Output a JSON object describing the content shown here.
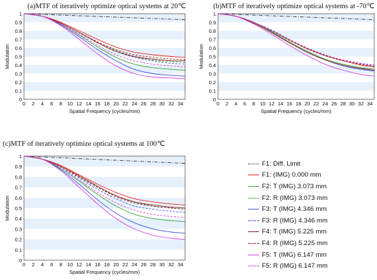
{
  "legend_entries": [
    {
      "label": "F1: Diff. Limit",
      "color": "#333333",
      "dash": "dashdot"
    },
    {
      "label": "F1: (IMG) 0.000 mm",
      "color": "#e8231f",
      "dash": "solid"
    },
    {
      "label": "F2: T (IMG) 3.073 mm",
      "color": "#36a336",
      "dash": "solid"
    },
    {
      "label": "F2: R (IMG) 3.073 mm",
      "color": "#36a336",
      "dash": "dashed"
    },
    {
      "label": "F3: T (IMG) 4.346 mm",
      "color": "#3b4fd8",
      "dash": "solid"
    },
    {
      "label": "F3: R (IMG) 4.346 mm",
      "color": "#3b4fd8",
      "dash": "dashed"
    },
    {
      "label": "F4: T (IMG) 5.225 mm",
      "color": "#8b1a1a",
      "dash": "solid"
    },
    {
      "label": "F4: R (IMG) 5.225 mm",
      "color": "#8b1a1a",
      "dash": "dashed"
    },
    {
      "label": "F5: T (IMG) 6.147 mm",
      "color": "#d63bd6",
      "dash": "solid"
    },
    {
      "label": "F5: R (IMG) 6.147 mm",
      "color": "#d63bd6",
      "dash": "dashed"
    }
  ],
  "chart_data": [
    {
      "type": "line",
      "title": "(a)MTF of iteratively optimize optical systems at 20℃",
      "xlabel": "Spatial Frequency (cycles/mm)",
      "ylabel": "Modulation",
      "xlim": [
        0,
        35
      ],
      "ylim": [
        0,
        1
      ],
      "xticks": [
        "0",
        "2",
        "4",
        "6",
        "8",
        "10",
        "12",
        "14",
        "16",
        "18",
        "20",
        "22",
        "24",
        "26",
        "28",
        "30",
        "32",
        "34"
      ],
      "yticks": [
        "0",
        "0.1",
        "0.2",
        "0.3",
        "0.4",
        "0.5",
        "0.6",
        "0.7",
        "0.8",
        "0.9",
        "1"
      ],
      "grid": "horizontal bands",
      "series": [
        {
          "name": "F1: Diff. Limit",
          "x": [
            0,
            35
          ],
          "y": [
            1.0,
            0.93
          ]
        },
        {
          "name": "F1: (IMG) 0.000 mm",
          "x": [
            0,
            4,
            8,
            12,
            16,
            20,
            24,
            28,
            32,
            35
          ],
          "y": [
            1.0,
            0.97,
            0.9,
            0.8,
            0.7,
            0.61,
            0.55,
            0.52,
            0.5,
            0.49
          ]
        },
        {
          "name": "F2: T (IMG) 3.073 mm",
          "x": [
            0,
            4,
            8,
            12,
            16,
            20,
            24,
            28,
            32,
            35
          ],
          "y": [
            1.0,
            0.97,
            0.88,
            0.75,
            0.61,
            0.49,
            0.41,
            0.37,
            0.35,
            0.34
          ]
        },
        {
          "name": "F2: R (IMG) 3.073 mm",
          "x": [
            0,
            4,
            8,
            12,
            16,
            20,
            24,
            28,
            32,
            35
          ],
          "y": [
            1.0,
            0.97,
            0.89,
            0.78,
            0.67,
            0.57,
            0.5,
            0.46,
            0.44,
            0.43
          ]
        },
        {
          "name": "F3: T (IMG) 4.346 mm",
          "x": [
            0,
            4,
            8,
            12,
            16,
            20,
            24,
            28,
            32,
            35
          ],
          "y": [
            1.0,
            0.97,
            0.87,
            0.73,
            0.58,
            0.45,
            0.35,
            0.3,
            0.28,
            0.27
          ]
        },
        {
          "name": "F3: R (IMG) 4.346 mm",
          "x": [
            0,
            4,
            8,
            12,
            16,
            20,
            24,
            28,
            32,
            35
          ],
          "y": [
            1.0,
            0.97,
            0.89,
            0.78,
            0.66,
            0.56,
            0.49,
            0.45,
            0.42,
            0.41
          ]
        },
        {
          "name": "F4: T (IMG) 5.225 mm",
          "x": [
            0,
            4,
            8,
            12,
            16,
            20,
            24,
            28,
            32,
            35
          ],
          "y": [
            1.0,
            0.97,
            0.89,
            0.78,
            0.66,
            0.56,
            0.5,
            0.47,
            0.45,
            0.45
          ]
        },
        {
          "name": "F4: R (IMG) 5.225 mm",
          "x": [
            0,
            4,
            8,
            12,
            16,
            20,
            24,
            28,
            32,
            35
          ],
          "y": [
            1.0,
            0.97,
            0.89,
            0.78,
            0.67,
            0.58,
            0.52,
            0.49,
            0.47,
            0.46
          ]
        },
        {
          "name": "F5: T (IMG) 6.147 mm",
          "x": [
            0,
            4,
            8,
            12,
            16,
            20,
            24,
            28,
            32,
            35
          ],
          "y": [
            1.0,
            0.97,
            0.86,
            0.7,
            0.53,
            0.39,
            0.3,
            0.26,
            0.25,
            0.24
          ]
        },
        {
          "name": "F5: R (IMG) 6.147 mm",
          "x": [
            0,
            4,
            8,
            12,
            16,
            20,
            24,
            28,
            32,
            35
          ],
          "y": [
            1.0,
            0.97,
            0.88,
            0.76,
            0.63,
            0.52,
            0.45,
            0.41,
            0.39,
            0.38
          ]
        }
      ]
    },
    {
      "type": "line",
      "title": "(b)MTF of iteratively optimize optical systems at -70℃",
      "xlabel": "Spatial Frequency (cycles/mm)",
      "ylabel": "Modulation",
      "xlim": [
        0,
        35
      ],
      "ylim": [
        0,
        1
      ],
      "xticks": [
        "0",
        "2",
        "4",
        "6",
        "8",
        "10",
        "12",
        "14",
        "16",
        "18",
        "20",
        "22",
        "24",
        "26",
        "28",
        "30",
        "32",
        "34"
      ],
      "yticks": [
        "0",
        "0.1",
        "0.2",
        "0.3",
        "0.4",
        "0.5",
        "0.6",
        "0.7",
        "0.8",
        "0.9",
        "1"
      ],
      "grid": "horizontal bands",
      "series": [
        {
          "name": "F1: Diff. Limit",
          "x": [
            0,
            35
          ],
          "y": [
            1.0,
            0.93
          ]
        },
        {
          "name": "F1: (IMG) 0.000 mm",
          "x": [
            0,
            4,
            8,
            12,
            16,
            20,
            24,
            28,
            32,
            35
          ],
          "y": [
            1.0,
            0.97,
            0.9,
            0.8,
            0.69,
            0.59,
            0.51,
            0.45,
            0.4,
            0.38
          ]
        },
        {
          "name": "F2: T (IMG) 3.073 mm",
          "x": [
            0,
            4,
            8,
            12,
            16,
            20,
            24,
            28,
            32,
            35
          ],
          "y": [
            1.0,
            0.97,
            0.9,
            0.79,
            0.67,
            0.56,
            0.47,
            0.41,
            0.37,
            0.35
          ]
        },
        {
          "name": "F2: R (IMG) 3.073 mm",
          "x": [
            0,
            4,
            8,
            12,
            16,
            20,
            24,
            28,
            32,
            35
          ],
          "y": [
            1.0,
            0.97,
            0.9,
            0.8,
            0.69,
            0.59,
            0.51,
            0.45,
            0.41,
            0.39
          ]
        },
        {
          "name": "F3: T (IMG) 4.346 mm",
          "x": [
            0,
            4,
            8,
            12,
            16,
            20,
            24,
            28,
            32,
            35
          ],
          "y": [
            1.0,
            0.97,
            0.89,
            0.78,
            0.66,
            0.55,
            0.46,
            0.39,
            0.35,
            0.33
          ]
        },
        {
          "name": "F3: R (IMG) 4.346 mm",
          "x": [
            0,
            4,
            8,
            12,
            16,
            20,
            24,
            28,
            32,
            35
          ],
          "y": [
            1.0,
            0.97,
            0.9,
            0.81,
            0.7,
            0.6,
            0.52,
            0.46,
            0.42,
            0.4
          ]
        },
        {
          "name": "F4: T (IMG) 5.225 mm",
          "x": [
            0,
            4,
            8,
            12,
            16,
            20,
            24,
            28,
            32,
            35
          ],
          "y": [
            1.0,
            0.97,
            0.89,
            0.78,
            0.66,
            0.55,
            0.46,
            0.4,
            0.36,
            0.34
          ]
        },
        {
          "name": "F4: R (IMG) 5.225 mm",
          "x": [
            0,
            4,
            8,
            12,
            16,
            20,
            24,
            28,
            32,
            35
          ],
          "y": [
            1.0,
            0.97,
            0.9,
            0.8,
            0.69,
            0.59,
            0.51,
            0.45,
            0.41,
            0.39
          ]
        },
        {
          "name": "F5: T (IMG) 6.147 mm",
          "x": [
            0,
            4,
            8,
            12,
            16,
            20,
            24,
            28,
            32,
            35
          ],
          "y": [
            1.0,
            0.97,
            0.88,
            0.76,
            0.63,
            0.51,
            0.41,
            0.34,
            0.29,
            0.27
          ]
        },
        {
          "name": "F5: R (IMG) 6.147 mm",
          "x": [
            0,
            4,
            8,
            12,
            16,
            20,
            24,
            28,
            32,
            35
          ],
          "y": [
            1.0,
            0.97,
            0.9,
            0.8,
            0.7,
            0.6,
            0.52,
            0.46,
            0.42,
            0.4
          ]
        }
      ]
    },
    {
      "type": "line",
      "title": "(c)MTF of iteratively optimize optical systems at 100℃",
      "xlabel": "Spatial Frequency (cycles/mm)",
      "ylabel": "Modulation",
      "xlim": [
        0,
        35
      ],
      "ylim": [
        0,
        1
      ],
      "xticks": [
        "0",
        "2",
        "4",
        "6",
        "8",
        "10",
        "12",
        "14",
        "16",
        "18",
        "20",
        "22",
        "24",
        "26",
        "28",
        "30",
        "32",
        "34"
      ],
      "yticks": [
        "0",
        "0.1",
        "0.2",
        "0.3",
        "0.4",
        "0.5",
        "0.6",
        "0.7",
        "0.8",
        "0.9",
        "1"
      ],
      "grid": "horizontal bands",
      "series": [
        {
          "name": "F1: Diff. Limit",
          "x": [
            0,
            35
          ],
          "y": [
            1.0,
            0.93
          ]
        },
        {
          "name": "F1: (IMG) 0.000 mm",
          "x": [
            0,
            4,
            8,
            12,
            16,
            20,
            24,
            28,
            32,
            35
          ],
          "y": [
            1.0,
            0.97,
            0.91,
            0.82,
            0.73,
            0.65,
            0.59,
            0.56,
            0.54,
            0.53
          ]
        },
        {
          "name": "F2: T (IMG) 3.073 mm",
          "x": [
            0,
            4,
            8,
            12,
            16,
            20,
            24,
            28,
            32,
            35
          ],
          "y": [
            1.0,
            0.97,
            0.88,
            0.76,
            0.63,
            0.52,
            0.44,
            0.4,
            0.38,
            0.37
          ]
        },
        {
          "name": "F2: R (IMG) 3.073 mm",
          "x": [
            0,
            4,
            8,
            12,
            16,
            20,
            24,
            28,
            32,
            35
          ],
          "y": [
            1.0,
            0.97,
            0.9,
            0.8,
            0.7,
            0.62,
            0.56,
            0.52,
            0.5,
            0.49
          ]
        },
        {
          "name": "F3: T (IMG) 4.346 mm",
          "x": [
            0,
            4,
            8,
            12,
            16,
            20,
            24,
            28,
            32,
            35
          ],
          "y": [
            1.0,
            0.97,
            0.87,
            0.73,
            0.58,
            0.45,
            0.36,
            0.3,
            0.27,
            0.26
          ]
        },
        {
          "name": "F3: R (IMG) 4.346 mm",
          "x": [
            0,
            4,
            8,
            12,
            16,
            20,
            24,
            28,
            32,
            35
          ],
          "y": [
            1.0,
            0.97,
            0.89,
            0.79,
            0.68,
            0.59,
            0.52,
            0.49,
            0.47,
            0.46
          ]
        },
        {
          "name": "F4: T (IMG) 5.225 mm",
          "x": [
            0,
            4,
            8,
            12,
            16,
            20,
            24,
            28,
            32,
            35
          ],
          "y": [
            1.0,
            0.97,
            0.9,
            0.81,
            0.71,
            0.62,
            0.56,
            0.53,
            0.51,
            0.5
          ]
        },
        {
          "name": "F4: R (IMG) 5.225 mm",
          "x": [
            0,
            4,
            8,
            12,
            16,
            20,
            24,
            28,
            32,
            35
          ],
          "y": [
            1.0,
            0.97,
            0.9,
            0.8,
            0.7,
            0.61,
            0.55,
            0.52,
            0.5,
            0.49
          ]
        },
        {
          "name": "F5: T (IMG) 6.147 mm",
          "x": [
            0,
            4,
            8,
            12,
            16,
            20,
            24,
            28,
            32,
            35
          ],
          "y": [
            1.0,
            0.97,
            0.86,
            0.7,
            0.54,
            0.4,
            0.3,
            0.24,
            0.21,
            0.2
          ]
        },
        {
          "name": "F5: R (IMG) 6.147 mm",
          "x": [
            0,
            4,
            8,
            12,
            16,
            20,
            24,
            28,
            32,
            35
          ],
          "y": [
            1.0,
            0.97,
            0.89,
            0.77,
            0.65,
            0.55,
            0.48,
            0.44,
            0.42,
            0.41
          ]
        }
      ]
    }
  ]
}
